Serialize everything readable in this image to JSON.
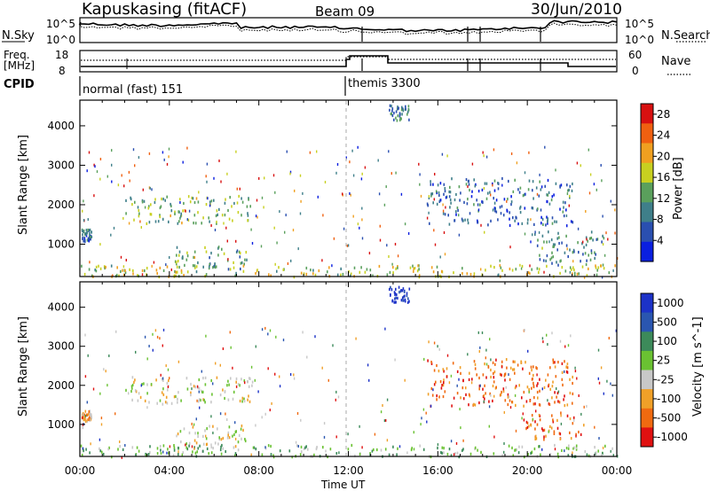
{
  "header": {
    "station": "Kapuskasing (fitACF)",
    "beam": "Beam 09",
    "date": "30/Jun/2010"
  },
  "noise_panel": {
    "left_label": "N.Sky",
    "right_label": "N.Search",
    "left_ticks": [
      "10^5",
      "10^0"
    ],
    "right_ticks": [
      "10^5",
      "10^0"
    ]
  },
  "freq_panel": {
    "left_label_top": "Freq.",
    "left_label_unit": "[MHz]",
    "left_ticks": [
      "18",
      "8"
    ],
    "right_label": "Nave",
    "right_ticks": [
      "60",
      "0"
    ]
  },
  "cpid_panel": {
    "label": "CPID",
    "programs": [
      {
        "name": "normal (fast) 151",
        "start_hour": 0
      },
      {
        "name": "themis 3300",
        "start_hour": 12
      }
    ]
  },
  "chart_data": [
    {
      "type": "heatmap",
      "name": "power",
      "ylabel": "Slant Range [km]",
      "ylim": [
        180,
        4650
      ],
      "xlim_hours": [
        0,
        24
      ],
      "yticks": [
        1000,
        2000,
        3000,
        4000
      ],
      "colorbar": {
        "label": "Power [dB]",
        "ticks": [
          4,
          8,
          12,
          16,
          20,
          24,
          28
        ],
        "range": [
          0,
          30
        ],
        "colors": [
          "#0a1fe0",
          "#2a4fb0",
          "#3f7f8a",
          "#5aa05c",
          "#c8d020",
          "#f0a020",
          "#f06010",
          "#d81010"
        ]
      },
      "scatter_regions": [
        {
          "t": [
            0.05,
            0.5
          ],
          "range": [
            1100,
            1400
          ],
          "level": 0.25
        },
        {
          "t": [
            2.0,
            7.7
          ],
          "range": [
            1550,
            2250
          ],
          "level": 0.45
        },
        {
          "t": [
            4.2,
            7.5
          ],
          "range": [
            400,
            1000
          ],
          "level": 0.4
        },
        {
          "t": [
            0,
            24
          ],
          "range": [
            200,
            500
          ],
          "level": 0.55
        },
        {
          "t": [
            20.3,
            23.4
          ],
          "range": [
            500,
            1350
          ],
          "level": 0.3
        },
        {
          "t": [
            15.5,
            22.0
          ],
          "range": [
            1500,
            2700
          ],
          "level": 0.2
        },
        {
          "t": [
            13.8,
            14.7
          ],
          "range": [
            4150,
            4550
          ],
          "level": 0.3
        }
      ]
    },
    {
      "type": "heatmap",
      "name": "velocity",
      "ylabel": "Slant Range [km]",
      "ylim": [
        180,
        4650
      ],
      "xlim_hours": [
        0,
        24
      ],
      "yticks": [
        1000,
        2000,
        3000,
        4000
      ],
      "xticks": [
        "00:00",
        "04:00",
        "08:00",
        "12:00",
        "16:00",
        "20:00",
        "00:00"
      ],
      "xlabel": "Time UT",
      "colorbar": {
        "label": "Velocity [m s^-1]",
        "ticks": [
          "1000",
          "500",
          "100",
          "25",
          "-25",
          "-100",
          "-500",
          "-1000"
        ],
        "colors": [
          "#1c32c8",
          "#2a56b0",
          "#3c8a5a",
          "#6ac232",
          "#c8c8c8",
          "#f0a028",
          "#f06a10",
          "#e01010"
        ]
      },
      "scatter_regions": [
        {
          "t": [
            0.05,
            0.5
          ],
          "range": [
            1100,
            1400
          ],
          "velocity": -25
        },
        {
          "t": [
            2.0,
            7.7
          ],
          "range": [
            1550,
            2250
          ],
          "velocity": 0
        },
        {
          "t": [
            4.2,
            7.5
          ],
          "range": [
            400,
            1000
          ],
          "velocity": 0
        },
        {
          "t": [
            0,
            24
          ],
          "range": [
            200,
            500
          ],
          "velocity": 50
        },
        {
          "t": [
            19.8,
            22.5
          ],
          "range": [
            650,
            1350
          ],
          "velocity": -300
        },
        {
          "t": [
            15.5,
            22.0
          ],
          "range": [
            1500,
            2700
          ],
          "velocity": -200
        },
        {
          "t": [
            13.8,
            14.7
          ],
          "range": [
            4150,
            4550
          ],
          "velocity": 600
        }
      ]
    }
  ]
}
